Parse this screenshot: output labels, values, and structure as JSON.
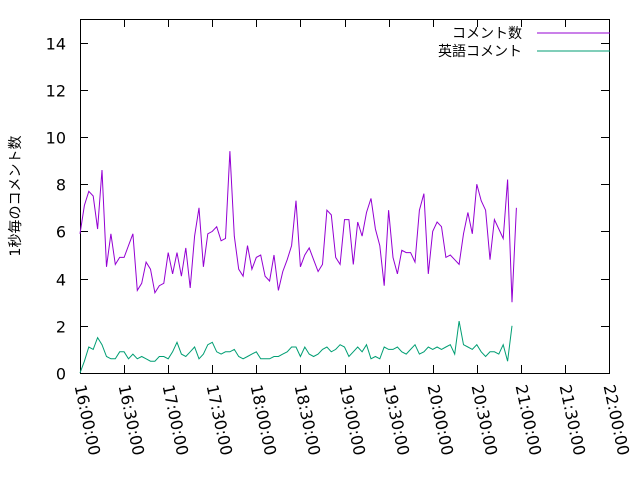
{
  "chart_data": {
    "type": "line",
    "ylabel": "1秒毎のコメント数",
    "ylim": [
      0,
      15
    ],
    "yticks": [
      0,
      2,
      4,
      6,
      8,
      10,
      12,
      14
    ],
    "xlim": [
      "16:00:00",
      "22:00:00"
    ],
    "xticks": [
      "16:00:00",
      "16:30:00",
      "17:00:00",
      "17:30:00",
      "18:00:00",
      "18:30:00",
      "19:00:00",
      "19:30:00",
      "20:00:00",
      "20:30:00",
      "21:00:00",
      "21:30:00",
      "22:00:00"
    ],
    "legend_position": "top-right",
    "grid": false,
    "series": [
      {
        "name": "コメント数",
        "color": "#9400d3",
        "x_start": "16:00:00",
        "x_step_seconds": 180,
        "values": [
          5.9,
          7.1,
          7.7,
          7.5,
          6.1,
          8.6,
          4.5,
          5.9,
          4.6,
          4.9,
          4.9,
          5.4,
          5.9,
          3.5,
          3.8,
          4.7,
          4.4,
          3.4,
          3.7,
          3.8,
          5.1,
          4.2,
          5.1,
          4.1,
          5.3,
          3.6,
          5.8,
          7.0,
          4.5,
          5.9,
          6.0,
          6.2,
          5.6,
          5.7,
          9.4,
          5.8,
          4.4,
          4.1,
          5.4,
          4.4,
          4.9,
          5.0,
          4.1,
          3.9,
          5.0,
          3.5,
          4.3,
          4.8,
          5.4,
          7.3,
          4.5,
          5.0,
          5.3,
          4.8,
          4.3,
          4.6,
          6.9,
          6.7,
          4.9,
          4.6,
          6.5,
          6.5,
          4.6,
          6.4,
          5.8,
          6.8,
          7.4,
          6.1,
          5.4,
          3.7,
          6.9,
          4.9,
          4.2,
          5.2,
          5.1,
          5.1,
          4.7,
          6.9,
          7.6,
          4.2,
          6.0,
          6.4,
          6.2,
          4.9,
          5.0,
          4.8,
          4.6,
          5.9,
          6.8,
          5.9,
          8.0,
          7.3,
          6.9,
          4.8,
          6.5,
          6.1,
          5.7,
          8.2,
          3.0,
          7.0
        ]
      },
      {
        "name": "英語コメント",
        "color": "#009e73",
        "x_start": "16:00:00",
        "x_step_seconds": 180,
        "values": [
          0.0,
          0.5,
          1.1,
          1.0,
          1.5,
          1.2,
          0.7,
          0.6,
          0.6,
          0.9,
          0.9,
          0.6,
          0.8,
          0.6,
          0.7,
          0.6,
          0.5,
          0.5,
          0.7,
          0.7,
          0.6,
          0.9,
          1.3,
          0.8,
          0.7,
          0.9,
          1.1,
          0.6,
          0.8,
          1.2,
          1.3,
          0.9,
          0.8,
          0.9,
          0.9,
          1.0,
          0.7,
          0.6,
          0.7,
          0.8,
          0.9,
          0.6,
          0.6,
          0.6,
          0.7,
          0.7,
          0.8,
          0.9,
          1.1,
          1.1,
          0.7,
          1.1,
          0.8,
          0.7,
          0.8,
          1.0,
          1.1,
          0.9,
          1.0,
          1.2,
          1.1,
          0.7,
          0.9,
          1.1,
          0.9,
          1.2,
          0.6,
          0.7,
          0.6,
          1.1,
          1.0,
          1.0,
          1.1,
          0.9,
          0.8,
          1.0,
          1.2,
          0.8,
          0.9,
          1.1,
          1.0,
          1.1,
          1.0,
          1.1,
          1.2,
          0.8,
          2.2,
          1.2,
          1.1,
          1.0,
          1.2,
          0.9,
          0.7,
          0.9,
          0.9,
          0.8,
          1.2,
          0.5,
          2.0
        ]
      }
    ]
  }
}
